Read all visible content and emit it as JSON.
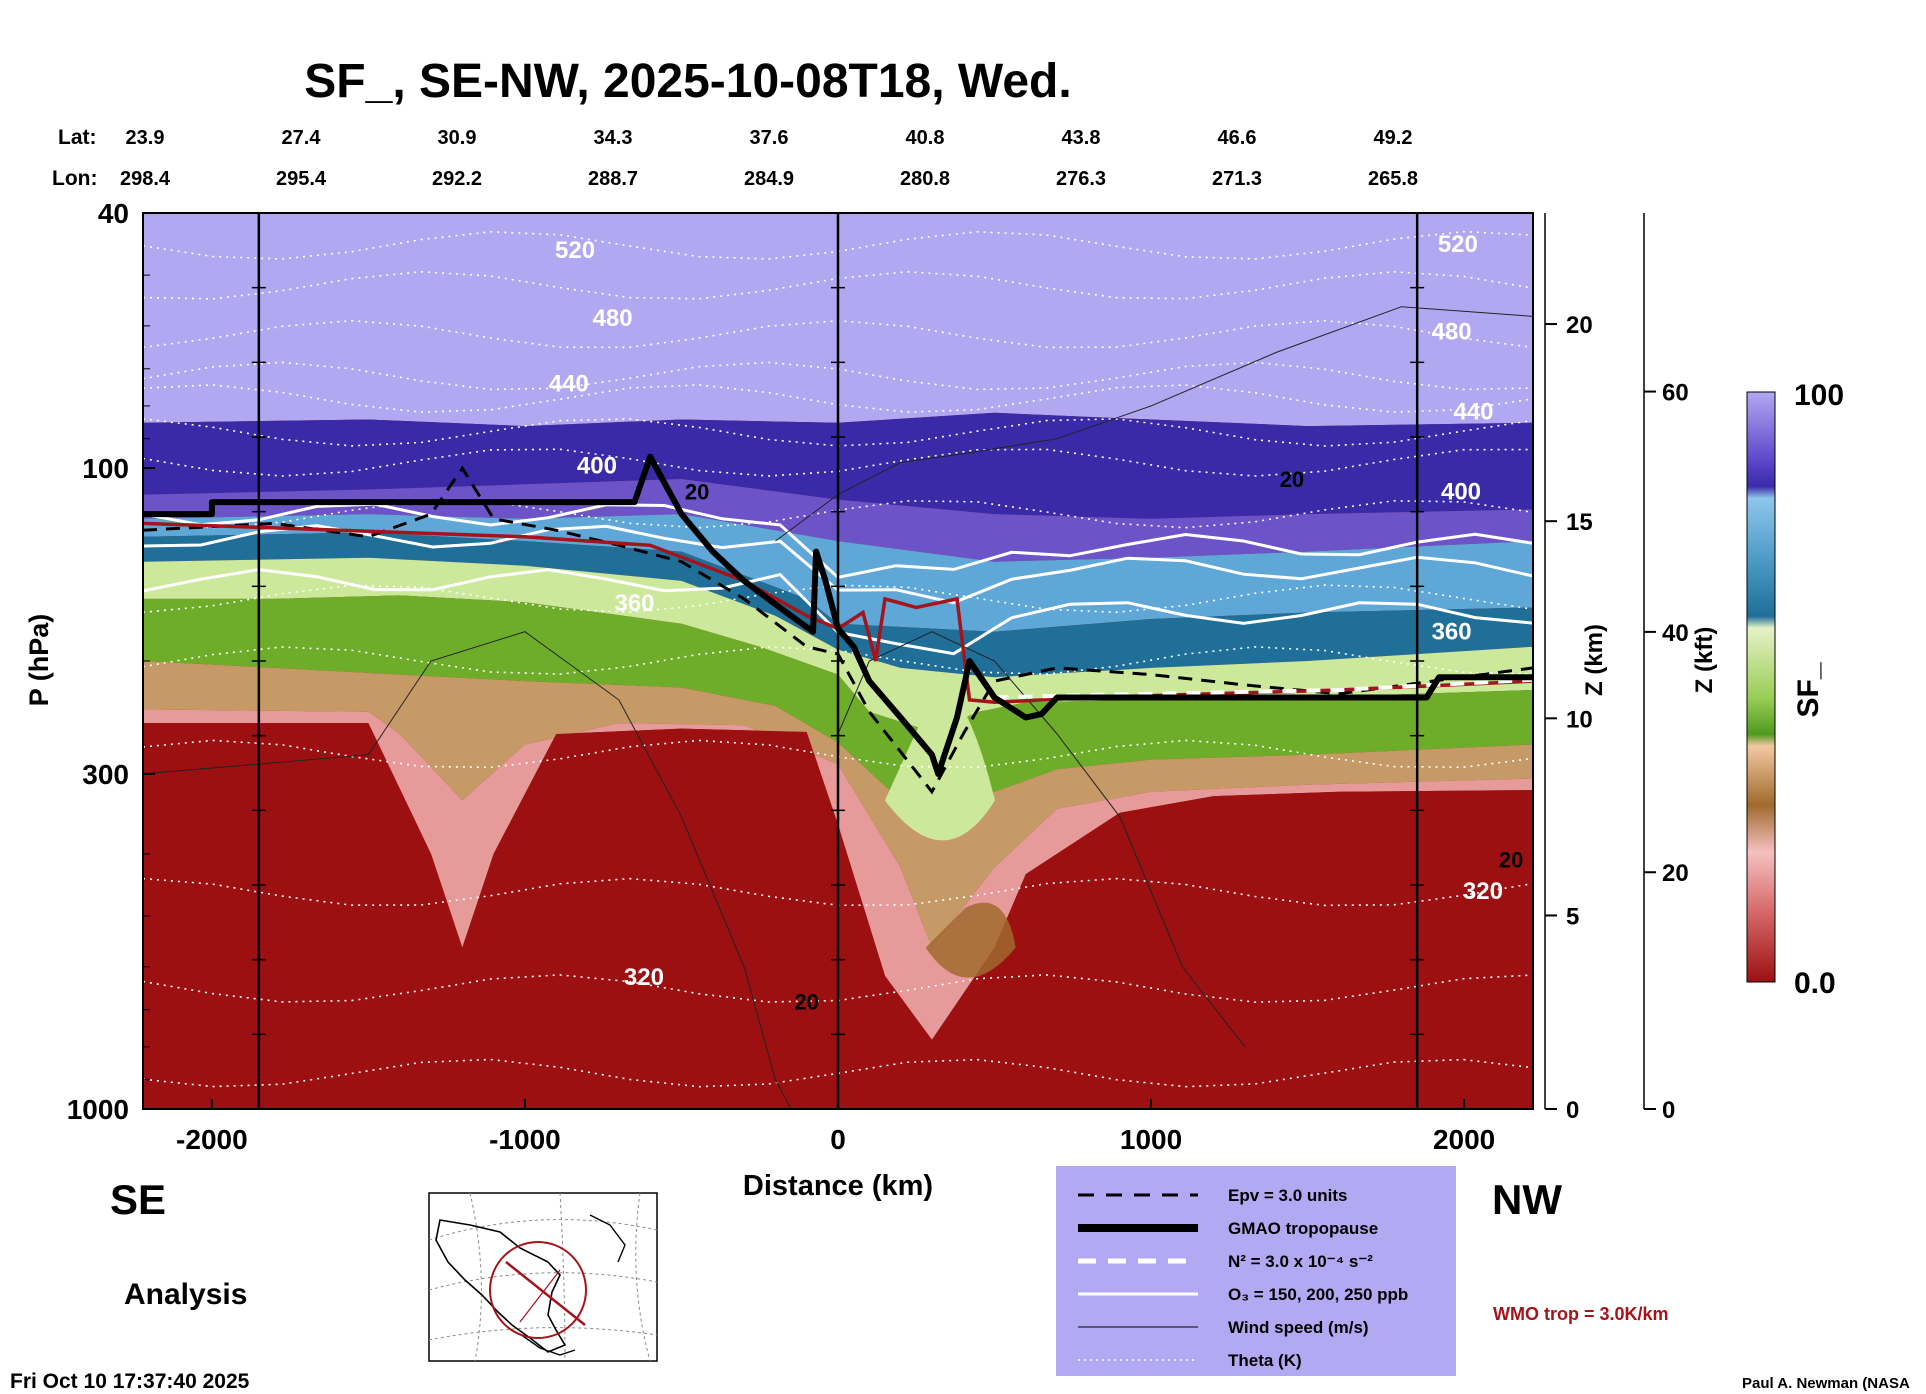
{
  "chart_data": {
    "type": "heatmap",
    "title": "SF_, SE-NW, 2025-10-08T18, Wed.",
    "xlabel": "Distance (km)",
    "ylabel": "P (hPa)",
    "z_label": "Z (km)",
    "zkft_label": "Z (kft)",
    "colorbar_label": "SF_",
    "colorbar_range": [
      "100",
      "0.0"
    ],
    "lat_label": "Lat:",
    "lon_label": "Lon:",
    "lats": [
      "23.9",
      "27.4",
      "30.9",
      "34.3",
      "37.6",
      "40.8",
      "43.8",
      "46.6",
      "49.2"
    ],
    "lons": [
      "298.4",
      "295.4",
      "292.2",
      "288.7",
      "284.9",
      "280.8",
      "276.3",
      "271.3",
      "265.8"
    ],
    "x_ticks": [
      -2000,
      -1000,
      0,
      1000,
      2000
    ],
    "x_range": [
      -2220,
      2220
    ],
    "p_ticks": [
      40,
      100,
      300,
      1000
    ],
    "p_range": [
      40,
      1000
    ],
    "z_ticks": [
      0,
      5,
      10,
      15,
      20
    ],
    "zkft_ticks": [
      0,
      20,
      40,
      60
    ],
    "vertical_lines_km": [
      -1850,
      0,
      1850
    ],
    "theta_labels": [
      {
        "text": "520",
        "x": -840,
        "p": 47
      },
      {
        "text": "480",
        "x": -720,
        "p": 60
      },
      {
        "text": "440",
        "x": -860,
        "p": 76
      },
      {
        "text": "400",
        "x": -770,
        "p": 102
      },
      {
        "text": "360",
        "x": -650,
        "p": 167
      },
      {
        "text": "320",
        "x": -620,
        "p": 640
      },
      {
        "text": "520",
        "x": 1980,
        "p": 46
      },
      {
        "text": "480",
        "x": 1960,
        "p": 63
      },
      {
        "text": "440",
        "x": 2030,
        "p": 84
      },
      {
        "text": "400",
        "x": 1990,
        "p": 112
      },
      {
        "text": "360",
        "x": 1960,
        "p": 185
      },
      {
        "text": "320",
        "x": 2060,
        "p": 470
      }
    ],
    "wind_labels": [
      {
        "text": "20",
        "x": -450,
        "p": 112
      },
      {
        "text": "20",
        "x": 1450,
        "p": 107
      },
      {
        "text": "20",
        "x": -100,
        "p": 700
      },
      {
        "text": "20",
        "x": 2150,
        "p": 420
      }
    ],
    "tropopause_km": [
      [
        -2220,
        118
      ],
      [
        -2000,
        118
      ],
      [
        -2000,
        113
      ],
      [
        -650,
        113
      ],
      [
        -600,
        96
      ],
      [
        -500,
        118
      ],
      [
        -400,
        135
      ],
      [
        -300,
        150
      ],
      [
        -150,
        170
      ],
      [
        -80,
        180
      ],
      [
        -70,
        135
      ],
      [
        -40,
        150
      ],
      [
        0,
        178
      ],
      [
        50,
        190
      ],
      [
        100,
        215
      ],
      [
        200,
        245
      ],
      [
        300,
        280
      ],
      [
        320,
        300
      ],
      [
        380,
        245
      ],
      [
        420,
        200
      ],
      [
        500,
        228
      ],
      [
        600,
        245
      ],
      [
        650,
        242
      ],
      [
        700,
        228
      ],
      [
        1100,
        228
      ],
      [
        1500,
        228
      ],
      [
        1880,
        228
      ],
      [
        1920,
        212
      ],
      [
        2220,
        212
      ]
    ],
    "legend": {
      "items": [
        "Epv = 3.0 units",
        "GMAO tropopause",
        "N² = 3.0 x 10⁻⁴ s⁻²",
        "O₃ = 150, 200, 250 ppb",
        "Wind speed (m/s)",
        "Theta (K)"
      ],
      "wmo": "WMO trop = 3.0K/km"
    },
    "side_labels": {
      "left": "SE",
      "right": "NW",
      "mode": "Analysis"
    },
    "timestamp": "Fri Oct 10 17:37:40 2025",
    "credit": "Paul A. Newman (NASA"
  },
  "colors": {
    "top": "#b2a8f2",
    "deep_purple": "#3a2aa8",
    "mid_blue": "#5fa7d6",
    "teal": "#1f6f99",
    "green": "#6ead2a",
    "light_green": "#cce89b",
    "tan": "#c59a66",
    "brown": "#a06a2e",
    "pink": "#e79a9a",
    "red": "#9c1012",
    "wmo": "#a4141a",
    "legend_bg": "#b3a9f3"
  }
}
